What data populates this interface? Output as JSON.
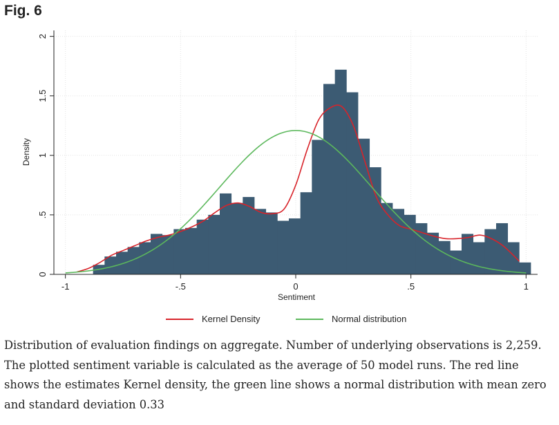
{
  "figure": {
    "label": "Fig. 6",
    "caption": "Distribution of evaluation findings on aggregate. Number of underlying observations is 2,259. The plotted sentiment variable is calculated as the average of 50 model runs. The red line shows the estimates Kernel density, the green line shows a normal distribution with mean zero and standard deviation 0.33"
  },
  "chart_data": {
    "type": "bar",
    "xlabel": "Sentiment",
    "ylabel": "Density",
    "xlim": [
      -1.05,
      1.05
    ],
    "ylim": [
      0,
      2.05
    ],
    "xticks": [
      {
        "value": -1,
        "label": "-1"
      },
      {
        "value": -0.5,
        "label": "-.5"
      },
      {
        "value": 0,
        "label": "0"
      },
      {
        "value": 0.5,
        "label": ".5"
      },
      {
        "value": 1,
        "label": "1"
      }
    ],
    "yticks": [
      {
        "value": 0,
        "label": "0"
      },
      {
        "value": 0.5,
        "label": ".5"
      },
      {
        "value": 1,
        "label": "1"
      },
      {
        "value": 1.5,
        "label": "1.5"
      },
      {
        "value": 2,
        "label": "2"
      }
    ],
    "grid": true,
    "histogram": {
      "bin_start": -0.88,
      "bin_width": 0.05,
      "color": "#3c5b73",
      "values": [
        0.08,
        0.15,
        0.19,
        0.23,
        0.27,
        0.34,
        0.33,
        0.38,
        0.39,
        0.46,
        0.5,
        0.68,
        0.6,
        0.65,
        0.55,
        0.52,
        0.45,
        0.47,
        0.69,
        1.13,
        1.6,
        1.72,
        1.53,
        1.14,
        0.9,
        0.6,
        0.55,
        0.5,
        0.43,
        0.35,
        0.28,
        0.2,
        0.34,
        0.27,
        0.38,
        0.43,
        0.27,
        0.1
      ]
    },
    "series": [
      {
        "name": "Kernel Density",
        "color": "#d8232a",
        "x": [
          -0.95,
          -0.9,
          -0.85,
          -0.8,
          -0.75,
          -0.7,
          -0.65,
          -0.6,
          -0.55,
          -0.5,
          -0.45,
          -0.4,
          -0.35,
          -0.3,
          -0.25,
          -0.2,
          -0.15,
          -0.1,
          -0.05,
          0.0,
          0.05,
          0.1,
          0.15,
          0.2,
          0.25,
          0.3,
          0.35,
          0.4,
          0.45,
          0.5,
          0.55,
          0.6,
          0.65,
          0.7,
          0.75,
          0.8,
          0.85,
          0.9,
          0.95,
          0.97
        ],
        "y": [
          0.02,
          0.05,
          0.1,
          0.16,
          0.2,
          0.24,
          0.28,
          0.31,
          0.33,
          0.36,
          0.4,
          0.45,
          0.52,
          0.58,
          0.6,
          0.57,
          0.52,
          0.51,
          0.55,
          0.75,
          1.05,
          1.3,
          1.4,
          1.41,
          1.25,
          0.95,
          0.65,
          0.5,
          0.41,
          0.38,
          0.35,
          0.32,
          0.3,
          0.3,
          0.31,
          0.33,
          0.3,
          0.24,
          0.15,
          0.11
        ]
      },
      {
        "name": "Normal distribution",
        "color": "#5cb85c",
        "mean": 0,
        "sd": 0.33,
        "x_range": [
          -1,
          1
        ]
      }
    ],
    "legend": {
      "placement": "bottom",
      "items": [
        {
          "label": "Kernel Density",
          "color": "#d8232a"
        },
        {
          "label": "Normal distribution",
          "color": "#5cb85c"
        }
      ]
    }
  }
}
